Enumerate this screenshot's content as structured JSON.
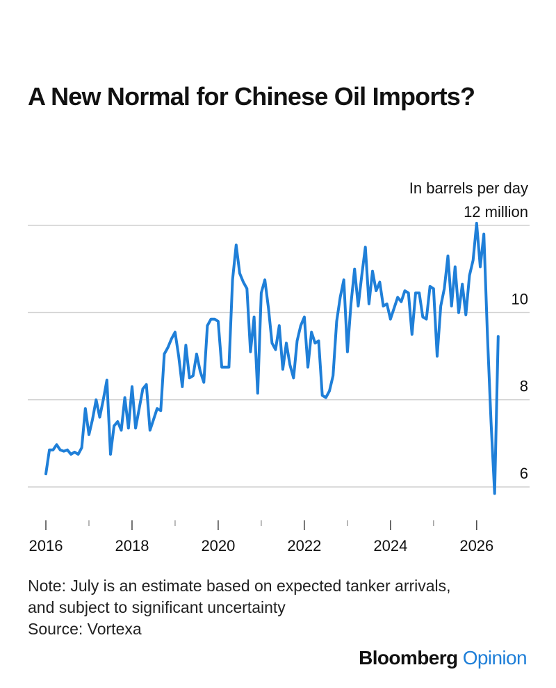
{
  "title": "A New Normal for Chinese Oil Imports?",
  "chart_data": {
    "type": "line",
    "unit_label": "In barrels per day",
    "y_ticks": [
      {
        "value": 12,
        "label": "12 million"
      },
      {
        "value": 10,
        "label": "10"
      },
      {
        "value": 8,
        "label": "8"
      },
      {
        "value": 6,
        "label": "6"
      }
    ],
    "x_ticks": [
      {
        "value": 2016,
        "label": "2016"
      },
      {
        "value": 2018,
        "label": "2018"
      },
      {
        "value": 2020,
        "label": "2020"
      },
      {
        "value": 2022,
        "label": "2022"
      },
      {
        "value": 2024,
        "label": "2024"
      },
      {
        "value": 2026,
        "label": "2026"
      }
    ],
    "ylim": [
      5.7,
      12.3
    ],
    "xlim": [
      2016,
      2026.6
    ],
    "grid": true,
    "line_color": "#1f7fd8",
    "series": [
      {
        "x": [
          2016.0,
          2016.083,
          2016.167,
          2016.25,
          2016.333,
          2016.417,
          2016.5,
          2016.583,
          2016.667,
          2016.75,
          2016.833,
          2016.917,
          2017.0,
          2017.083,
          2017.167,
          2017.25,
          2017.333,
          2017.417,
          2017.5,
          2017.583,
          2017.667,
          2017.75,
          2017.833,
          2017.917,
          2018.0,
          2018.083,
          2018.167,
          2018.25,
          2018.333,
          2018.417,
          2018.5,
          2018.583,
          2018.667,
          2018.75,
          2018.833,
          2018.917,
          2019.0,
          2019.083,
          2019.167,
          2019.25,
          2019.333,
          2019.417,
          2019.5,
          2019.583,
          2019.667,
          2019.75,
          2019.833,
          2019.917,
          2020.0,
          2020.083,
          2020.167,
          2020.25,
          2020.333,
          2020.417,
          2020.5,
          2020.583,
          2020.667,
          2020.75,
          2020.833,
          2020.917,
          2021.0,
          2021.083,
          2021.167,
          2021.25,
          2021.333,
          2021.417,
          2021.5,
          2021.583,
          2021.667,
          2021.75,
          2021.833,
          2021.917,
          2022.0,
          2022.083,
          2022.167,
          2022.25,
          2022.333,
          2022.417,
          2022.5,
          2022.583,
          2022.667,
          2022.75,
          2022.833,
          2022.917,
          2023.0,
          2023.083,
          2023.167,
          2023.25,
          2023.333,
          2023.417,
          2023.5,
          2023.583,
          2023.667,
          2023.75,
          2023.833,
          2023.917,
          2024.0,
          2024.083,
          2024.167,
          2024.25,
          2024.333,
          2024.417,
          2024.5,
          2024.583,
          2024.667,
          2024.75,
          2024.833,
          2024.917,
          2025.0,
          2025.083,
          2025.167,
          2025.25,
          2025.333,
          2025.417,
          2025.5,
          2025.583,
          2025.667,
          2025.75,
          2025.833,
          2025.917,
          2026.0,
          2026.083,
          2026.167,
          2026.25,
          2026.333,
          2026.417,
          2026.5
        ],
        "y": [
          6.3,
          6.85,
          6.85,
          6.97,
          6.85,
          6.82,
          6.85,
          6.75,
          6.8,
          6.75,
          6.9,
          7.8,
          7.2,
          7.55,
          8.0,
          7.6,
          8.0,
          8.45,
          6.75,
          7.4,
          7.5,
          7.3,
          8.05,
          7.35,
          8.3,
          7.35,
          7.8,
          8.25,
          8.35,
          7.3,
          7.55,
          7.8,
          7.75,
          9.05,
          9.2,
          9.4,
          9.55,
          9.0,
          8.3,
          9.25,
          8.5,
          8.55,
          9.05,
          8.65,
          8.4,
          9.7,
          9.85,
          9.85,
          9.8,
          8.75,
          8.75,
          8.75,
          10.75,
          11.55,
          10.9,
          10.7,
          10.55,
          9.1,
          9.9,
          8.15,
          10.45,
          10.75,
          10.1,
          9.3,
          9.15,
          9.7,
          8.7,
          9.3,
          8.8,
          8.5,
          9.35,
          9.7,
          9.9,
          8.75,
          9.55,
          9.3,
          9.35,
          8.1,
          8.05,
          8.2,
          8.55,
          9.8,
          10.35,
          10.75,
          9.1,
          10.2,
          11.0,
          10.15,
          10.85,
          11.5,
          10.2,
          10.95,
          10.5,
          10.7,
          10.15,
          10.2,
          9.85,
          10.1,
          10.35,
          10.25,
          10.5,
          10.45,
          9.5,
          10.45,
          10.45,
          9.9,
          9.85,
          10.6,
          10.55,
          9.0,
          10.15,
          10.55,
          11.3,
          10.15,
          11.05,
          10.0,
          10.65,
          9.95,
          10.85,
          11.2,
          12.05,
          11.05,
          11.8,
          9.5,
          7.5,
          5.85,
          9.45
        ]
      }
    ]
  },
  "notes": {
    "line1": "Note: July is an estimate based on expected tanker arrivals,",
    "line2": "and subject to significant uncertainty",
    "source": "Source: Vortexa"
  },
  "brand": {
    "name": "Bloomberg",
    "section": "Opinion"
  }
}
